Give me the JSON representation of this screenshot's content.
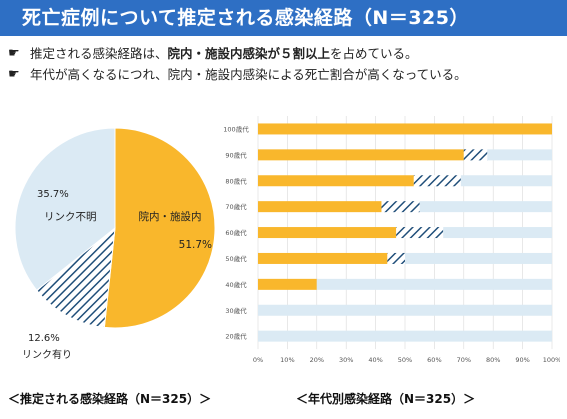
{
  "header": {
    "title": "死亡症例について推定される感染経路（N＝325）"
  },
  "bullets": [
    {
      "mark": "☛",
      "pre": "推定される感染経路は、",
      "bold": "院内・施設内感染が５割以上",
      "post": "を占めている。"
    },
    {
      "mark": "☛",
      "pre": "年代が高くなるにつれ、院内・施設内感染による死亡割合が高くなっている。",
      "bold": "",
      "post": ""
    }
  ],
  "captions": {
    "pie": "＜推定される感染経路（N＝325）＞",
    "bar": "＜年代別感染経路（N＝325）＞"
  },
  "colors": {
    "hospital": "#f9b72c",
    "known": "#1f4e79",
    "unknown": "#dbeaf4",
    "title_bg": "#2e6fc4"
  },
  "chart_data": [
    {
      "type": "pie",
      "title": "",
      "slices": [
        {
          "label": "院内・施設内",
          "pct_label": "51.7%",
          "value": 51.7,
          "color": "#f9b72c",
          "pattern": "solid"
        },
        {
          "label": "リンク有り",
          "pct_label": "12.6%",
          "value": 12.6,
          "color": "#1f4e79",
          "pattern": "hatch"
        },
        {
          "label": "リンク不明",
          "pct_label": "35.7%",
          "value": 35.7,
          "color": "#dbeaf4",
          "pattern": "solid"
        }
      ]
    },
    {
      "type": "bar",
      "orientation": "horizontal",
      "stacked": true,
      "title": "",
      "categories": [
        "100歳代",
        "90歳代",
        "80歳代",
        "70歳代",
        "60歳代",
        "50歳代",
        "40歳代",
        "30歳代",
        "20歳代"
      ],
      "series": [
        {
          "values": [
            100,
            70,
            53,
            42,
            47,
            44,
            20,
            0,
            0
          ],
          "color": "#f9b72c",
          "pattern": "solid"
        },
        {
          "values": [
            0,
            8,
            16,
            13,
            16,
            6,
            0,
            0,
            0
          ],
          "color": "#1f4e79",
          "pattern": "hatch"
        },
        {
          "values": [
            0,
            22,
            31,
            45,
            37,
            50,
            80,
            100,
            100
          ],
          "color": "#dbeaf4",
          "pattern": "solid"
        }
      ],
      "xlim": [
        0,
        100
      ],
      "x_ticks": [
        "0%",
        "10%",
        "20%",
        "30%",
        "40%",
        "50%",
        "60%",
        "70%",
        "80%",
        "90%",
        "100%"
      ],
      "grid": true
    }
  ]
}
